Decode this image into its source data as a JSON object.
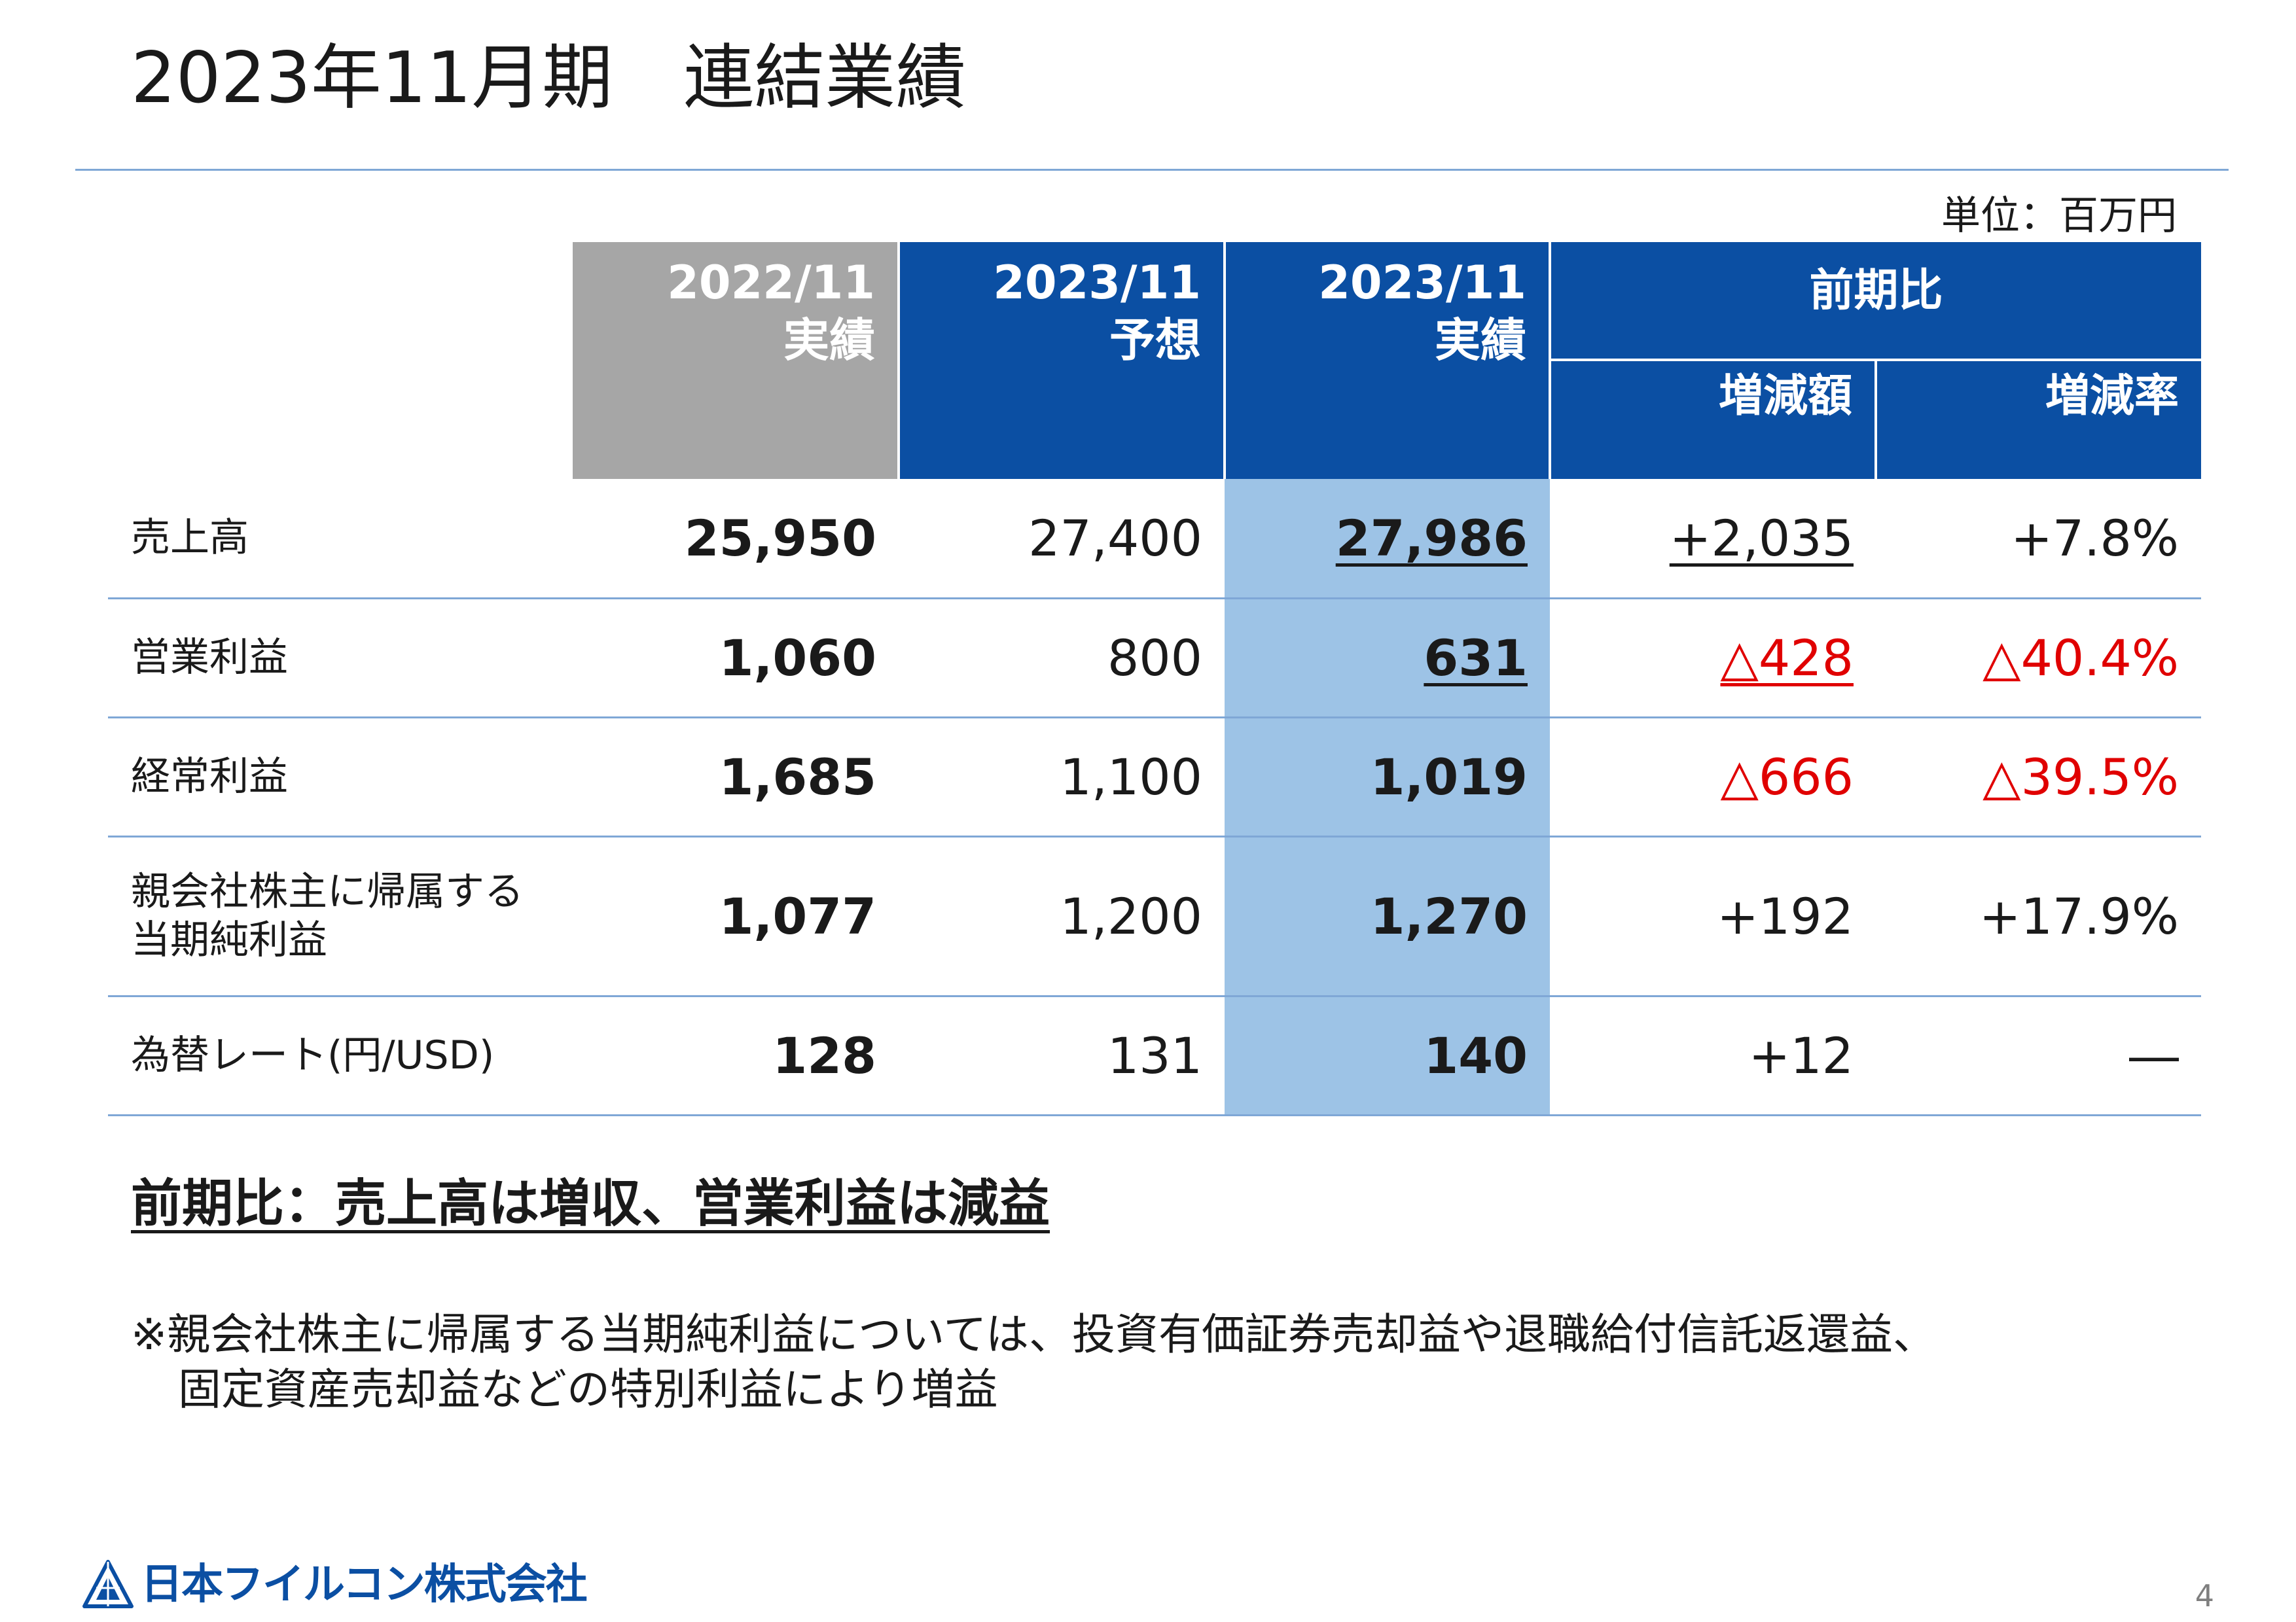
{
  "title": "2023年11月期　連結業績",
  "unit_label": "単位：百万円",
  "table": {
    "headers": {
      "col1": {
        "year": "2022/11",
        "kind": "実績"
      },
      "col2": {
        "year": "2023/11",
        "kind": "予想"
      },
      "col3": {
        "year": "2023/11",
        "kind": "実績"
      },
      "group": "前期比",
      "sub1": "増減額",
      "sub2": "増減率"
    },
    "rows": [
      {
        "label_line1": "売上高",
        "label_line2": "",
        "prev": "25,950",
        "forecast": "27,400",
        "actual": "27,986",
        "diff": "+2,035",
        "rate": "+7.8%"
      },
      {
        "label_line1": "営業利益",
        "label_line2": "",
        "prev": "1,060",
        "forecast": "800",
        "actual": "631",
        "diff": "△428",
        "rate": "△40.4%"
      },
      {
        "label_line1": "経常利益",
        "label_line2": "",
        "prev": "1,685",
        "forecast": "1,100",
        "actual": "1,019",
        "diff": "△666",
        "rate": "△39.5%"
      },
      {
        "label_line1": "親会社株主に帰属する",
        "label_line2": "当期純利益",
        "prev": "1,077",
        "forecast": "1,200",
        "actual": "1,270",
        "diff": "+192",
        "rate": "+17.9%"
      },
      {
        "label_line1": "為替レート(円/USD)",
        "label_line2": "",
        "prev": "128",
        "forecast": "131",
        "actual": "140",
        "diff": "+12",
        "rate": "―"
      }
    ]
  },
  "summary": "前期比：売上高は増収、営業利益は減益",
  "note": {
    "line1": "※親会社株主に帰属する当期純利益については、投資有価証券売却益や退職給付信託返還益、",
    "line2": "固定資産売却益などの特別利益により増益"
  },
  "footer": {
    "logo_text": "日本フイルコン株式会社",
    "logo_icon": "filcon-triangle-logo-icon",
    "page_number": "4"
  },
  "colors": {
    "header_blue": "#0b4fa3",
    "header_gray": "#a6a6a6",
    "highlight_blue": "#9dc3e6",
    "negative_red": "#e00000",
    "rule_blue": "#7fa7d6"
  }
}
